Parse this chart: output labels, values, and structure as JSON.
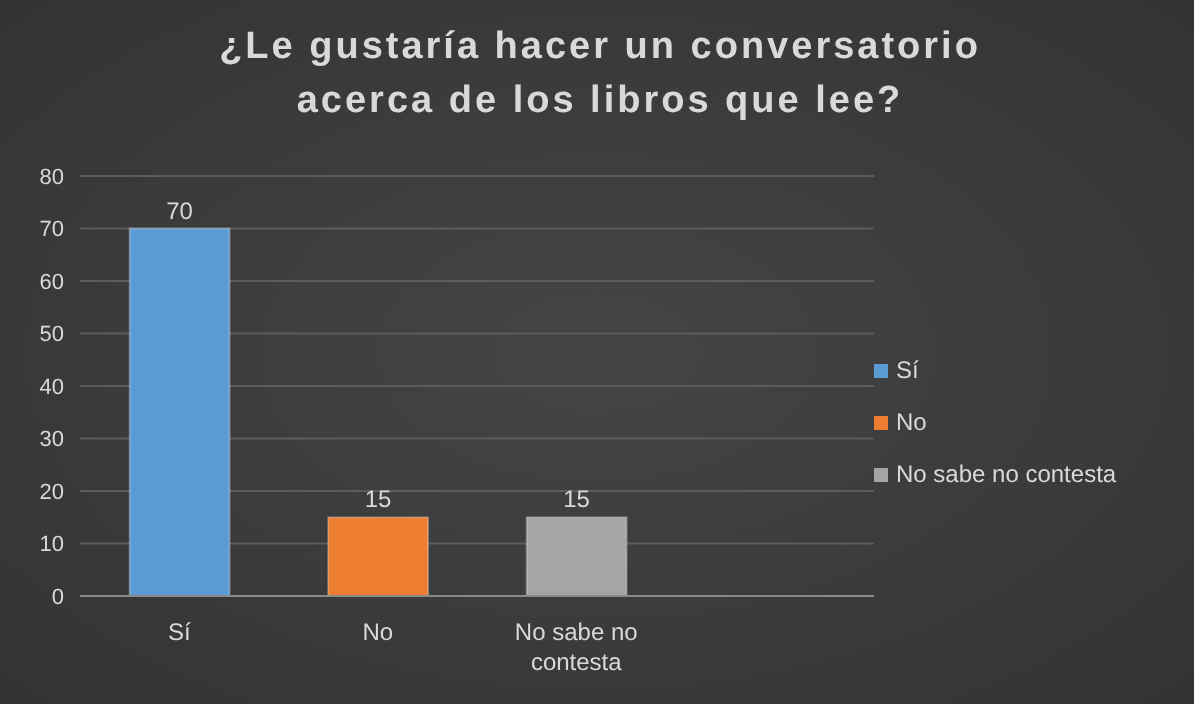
{
  "chart_data": {
    "type": "bar",
    "title": "¿Le gustaría hacer un conversatorio acerca de los libros que lee?",
    "categories": [
      "Sí",
      "No",
      "No sabe no contesta",
      null
    ],
    "stacked": true,
    "series": [
      {
        "name": "Sí",
        "color": "#5b9bd5",
        "values": [
          70,
          null,
          null,
          null
        ]
      },
      {
        "name": "No",
        "color": "#ed7d31",
        "values": [
          null,
          15,
          null,
          null
        ]
      },
      {
        "name": "No sabe no contesta",
        "color": "#a5a5a5",
        "values": [
          null,
          null,
          15,
          null
        ]
      }
    ],
    "ylim": [
      0,
      80
    ],
    "yticks": [
      0,
      10,
      20,
      30,
      40,
      50,
      60,
      70,
      80
    ],
    "grid": "y",
    "legend": "right",
    "data_labels": true
  }
}
